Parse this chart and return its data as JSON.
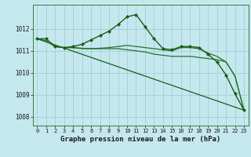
{
  "xlabel": "Graphe pression niveau de la mer (hPa)",
  "background_color": "#c5e8ee",
  "grid_color": "#9ec8d4",
  "xlim": [
    -0.5,
    23.5
  ],
  "ylim": [
    1007.6,
    1013.1
  ],
  "yticks": [
    1008,
    1009,
    1010,
    1011,
    1012
  ],
  "xticks": [
    0,
    1,
    2,
    3,
    4,
    5,
    6,
    7,
    8,
    9,
    10,
    11,
    12,
    13,
    14,
    15,
    16,
    17,
    18,
    19,
    20,
    21,
    22,
    23
  ],
  "series": [
    {
      "x": [
        0,
        1,
        2,
        3,
        4,
        5,
        6,
        7,
        8,
        9,
        10,
        11,
        12,
        13,
        14,
        15,
        16,
        17,
        18,
        19,
        20,
        21,
        22,
        23
      ],
      "y": [
        1011.55,
        1011.55,
        1011.2,
        1011.15,
        1011.2,
        1011.3,
        1011.5,
        1011.7,
        1011.9,
        1012.2,
        1012.55,
        1012.65,
        1012.1,
        1011.55,
        1011.1,
        1011.05,
        1011.2,
        1011.2,
        1011.15,
        1010.85,
        1010.5,
        1009.9,
        1009.05,
        1008.3
      ],
      "color": "#1a5c1a",
      "linewidth": 1.0,
      "marker": "D",
      "markersize": 2.0,
      "zorder": 4
    },
    {
      "x": [
        0,
        1,
        2,
        3,
        4,
        5,
        6,
        7,
        8,
        9,
        10,
        11,
        12,
        13,
        14,
        15,
        16,
        17,
        18,
        19,
        20,
        21,
        22,
        23
      ],
      "y": [
        1011.55,
        1011.45,
        1011.2,
        1011.15,
        1011.15,
        1011.1,
        1011.1,
        1011.1,
        1011.1,
        1011.1,
        1011.05,
        1011.0,
        1010.95,
        1010.85,
        1010.8,
        1010.75,
        1010.75,
        1010.75,
        1010.7,
        1010.65,
        1010.6,
        1010.5,
        1009.85,
        1008.3
      ],
      "color": "#2a6e2a",
      "linewidth": 0.9,
      "marker": null,
      "markersize": 0,
      "zorder": 3
    },
    {
      "x": [
        0,
        1,
        2,
        3,
        4,
        5,
        6,
        7,
        8,
        9,
        10,
        11,
        12,
        13,
        14,
        15,
        16,
        17,
        18,
        19,
        20,
        21,
        22,
        23
      ],
      "y": [
        1011.55,
        1011.45,
        1011.2,
        1011.15,
        1011.15,
        1011.12,
        1011.1,
        1011.12,
        1011.15,
        1011.2,
        1011.25,
        1011.2,
        1011.15,
        1011.1,
        1011.05,
        1011.0,
        1011.15,
        1011.15,
        1011.1,
        1010.9,
        1010.75,
        1010.5,
        1009.85,
        1008.3
      ],
      "color": "#267326",
      "linewidth": 0.9,
      "marker": null,
      "markersize": 0,
      "zorder": 3
    },
    {
      "x": [
        0,
        23
      ],
      "y": [
        1011.55,
        1008.3
      ],
      "color": "#1a5c1a",
      "linewidth": 0.9,
      "marker": null,
      "markersize": 0,
      "zorder": 2
    }
  ],
  "tick_label_fontsize": 5.5,
  "xlabel_fontsize": 6.5,
  "xlabel_fontweight": "bold"
}
